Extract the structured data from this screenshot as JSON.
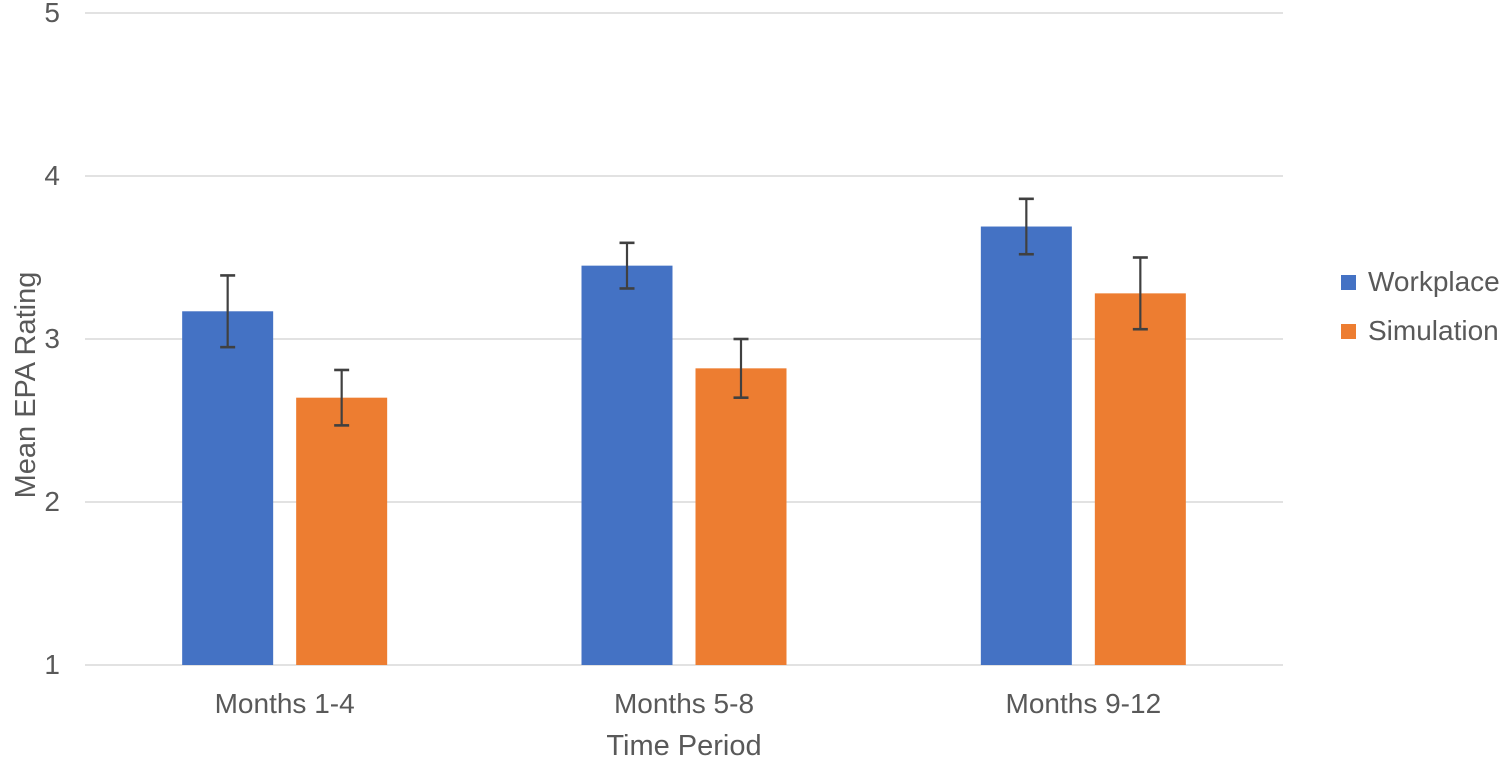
{
  "chart_data": {
    "type": "bar",
    "title": "",
    "xlabel": "Time Period",
    "ylabel": "Mean EPA Rating",
    "categories": [
      "Months 1-4",
      "Months 5-8",
      "Months 9-12"
    ],
    "series": [
      {
        "name": "Workplace",
        "color": "#4472C4",
        "values": [
          3.17,
          3.45,
          3.69
        ],
        "errors": [
          0.22,
          0.14,
          0.17
        ]
      },
      {
        "name": "Simulation",
        "color": "#ED7D31",
        "values": [
          2.64,
          2.82,
          3.28
        ],
        "errors": [
          0.17,
          0.18,
          0.22
        ]
      }
    ],
    "y_ticks": [
      1,
      2,
      3,
      4,
      5
    ],
    "ylim": [
      1,
      5
    ],
    "grid": true,
    "legend_position": "right",
    "error_bars": true,
    "colors": {
      "text": "#595959",
      "gridline": "#D9D9D9",
      "error_bar": "#404040",
      "background": "#FFFFFF"
    }
  }
}
